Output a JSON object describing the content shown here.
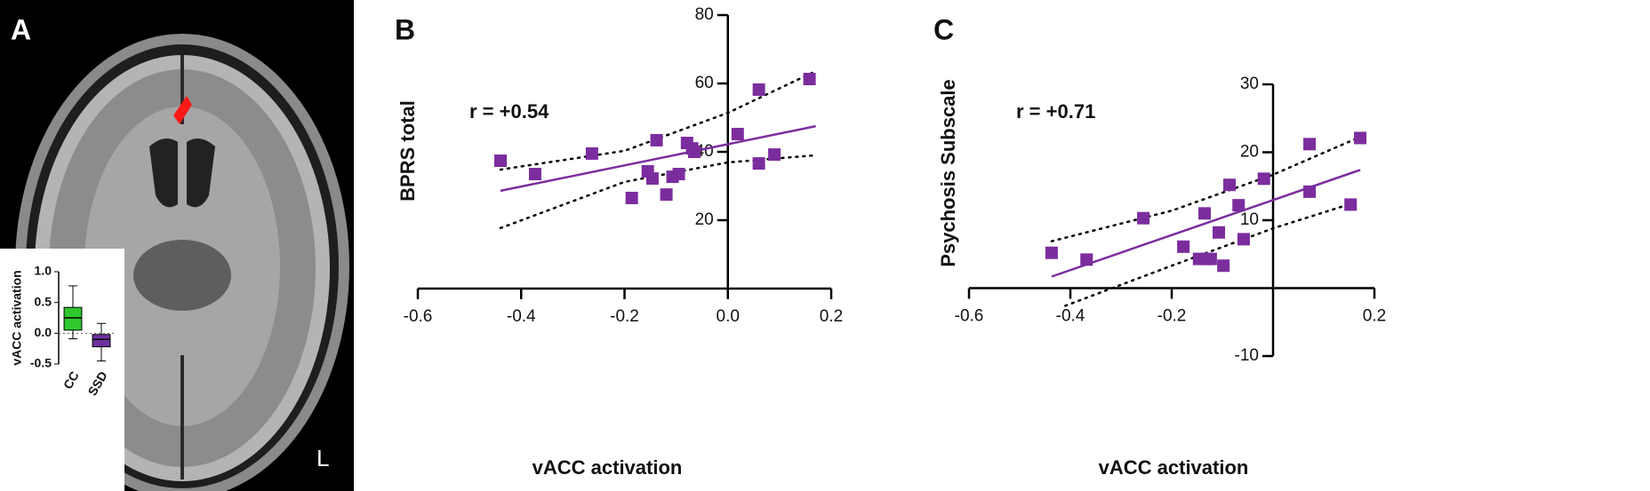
{
  "image": {
    "panel": "A",
    "side_label": "L"
  },
  "chart_data": [
    {
      "type": "box",
      "ylabel": "vACC activation",
      "categories": [
        "CC",
        "SSD"
      ],
      "boxes": [
        {
          "color": "#2fc82f",
          "whisker_low": -0.09,
          "q1": 0.05,
          "median": 0.25,
          "q3": 0.42,
          "whisker_high": 0.77
        },
        {
          "color": "#7030a0",
          "whisker_low": -0.45,
          "q1": -0.22,
          "median": -0.1,
          "q3": -0.02,
          "whisker_high": 0.16
        }
      ],
      "ylim": [
        -0.5,
        1.0
      ],
      "yticks": [
        -0.5,
        {
          "value": 0,
          "label": "0.0"
        },
        0.5,
        {
          "value": 1,
          "label": "1.0"
        }
      ],
      "zero_line": true
    },
    {
      "type": "scatter",
      "panel": "B",
      "xlabel": "vACC activation",
      "ylabel": "BPRS total",
      "annotation": "r = +0.54",
      "color": "#7b2d9e",
      "x": [
        -0.44,
        -0.373,
        -0.263,
        -0.186,
        -0.138,
        -0.155,
        -0.146,
        -0.119,
        -0.107,
        -0.095,
        -0.079,
        -0.069,
        -0.065,
        0.019,
        0.06,
        0.06,
        0.09,
        0.158
      ],
      "y": [
        37.4,
        33.5,
        39.5,
        26.5,
        43.4,
        34.3,
        32.2,
        27.5,
        32.7,
        33.5,
        42.6,
        41.0,
        40.0,
        45.2,
        58.2,
        36.6,
        39.2,
        61.3
      ],
      "fit": {
        "x": [
          -0.44,
          0.17
        ],
        "y": [
          28.6,
          47.5
        ]
      },
      "ci_upper": {
        "x": [
          -0.44,
          -0.2,
          0,
          0.17
        ],
        "y": [
          34.8,
          40.3,
          51.4,
          63.6
        ]
      },
      "ci_lower": {
        "x": [
          -0.44,
          -0.2,
          0,
          0.17
        ],
        "y": [
          17.7,
          31.2,
          36.9,
          39
        ]
      },
      "xlim": [
        -0.6,
        0.2
      ],
      "xticks": [
        -0.6,
        -0.4,
        -0.2,
        {
          "value": 0,
          "label": "0.0"
        },
        0.2
      ],
      "ylim": [
        0,
        80
      ],
      "yticks": [
        20,
        40,
        60,
        80
      ]
    },
    {
      "type": "scatter",
      "panel": "C",
      "xlabel": "vACC activation",
      "ylabel": "Psychosis Subscale",
      "annotation": "r = +0.71",
      "color": "#7b2d9e",
      "x": [
        -0.437,
        -0.368,
        -0.256,
        -0.177,
        -0.146,
        -0.135,
        -0.132,
        -0.123,
        -0.107,
        -0.098,
        -0.086,
        -0.068,
        -0.058,
        -0.018,
        0.072,
        0.072,
        0.153,
        0.172
      ],
      "y": [
        5.2,
        4.2,
        10.3,
        6.1,
        4.3,
        11.0,
        4.3,
        4.3,
        8.2,
        3.3,
        15.2,
        12.2,
        7.2,
        16.1,
        21.2,
        14.2,
        12.3,
        22.1
      ],
      "fit": {
        "x": [
          -0.437,
          0.172
        ],
        "y": [
          1.7,
          17.4
        ]
      },
      "ci_upper": {
        "x": [
          -0.437,
          -0.2,
          0,
          0.17
        ],
        "y": [
          6.9,
          11.4,
          16.7,
          22.2
        ]
      },
      "ci_lower": {
        "x": [
          -0.41,
          -0.2,
          0,
          0.17
        ],
        "y": [
          -2.6,
          3.3,
          8.8,
          12.8
        ]
      },
      "xlim": [
        -0.6,
        0.2
      ],
      "xticks": [
        -0.6,
        -0.4,
        -0.2,
        0.2
      ],
      "ylim": [
        -10,
        30
      ],
      "yticks": [
        -10,
        10,
        20,
        30
      ]
    }
  ]
}
